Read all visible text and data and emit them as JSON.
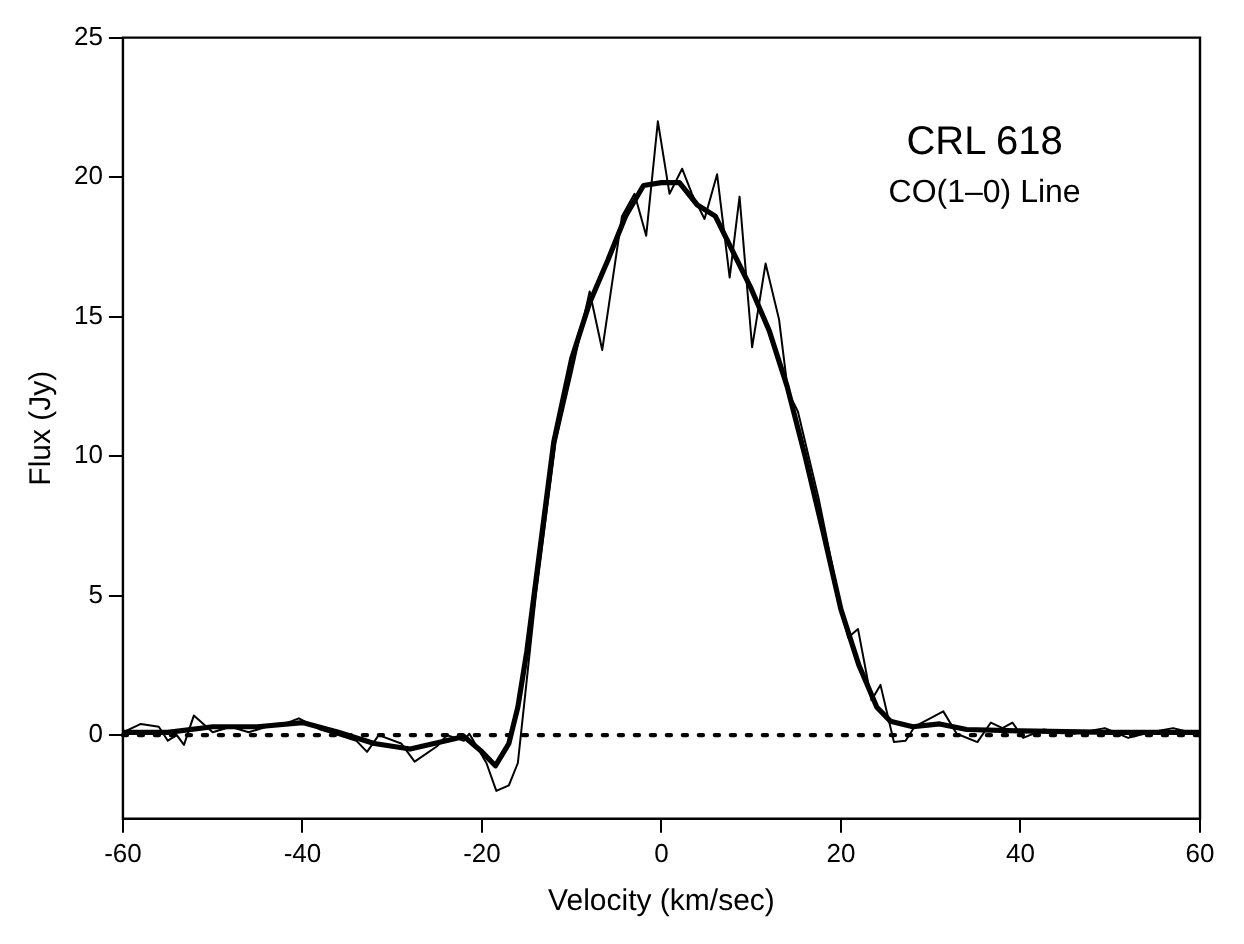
{
  "chart_data": {
    "type": "line",
    "xlabel": "Velocity (km/sec)",
    "ylabel": "Flux (Jy)",
    "annotations": [
      "CRL 618",
      "CO(1–0) Line"
    ],
    "xlim": [
      -60,
      60
    ],
    "xticks": [
      -60,
      -40,
      -20,
      0,
      20,
      40,
      60
    ],
    "ylim": [
      -3,
      25
    ],
    "yticks": [
      0,
      5,
      10,
      15,
      20,
      25
    ],
    "grid": false,
    "legend": false,
    "marker": "none",
    "ref_lines": [
      {
        "axis": "y",
        "value": 0,
        "color": "#000000",
        "line_style": "dotted"
      }
    ],
    "series": [
      {
        "color": "#000000",
        "line_style": "solid",
        "x": [
          -60,
          -58,
          -56,
          -55,
          -54,
          -53.2,
          -52.1,
          -50,
          -48,
          -46,
          -44,
          -42,
          -40.4,
          -38,
          -36,
          -34,
          -32.8,
          -31.5,
          -29,
          -27.5,
          -25,
          -23.9,
          -22,
          -21.4,
          -19.5,
          -18.4,
          -17,
          -16,
          -15.2,
          -14,
          -13,
          -11.8,
          -10,
          -8,
          -6.6,
          -4.4,
          -3,
          -1.7,
          -0.4,
          0.9,
          2.3,
          3.4,
          4.8,
          6.2,
          7.6,
          8.7,
          10.1,
          11.6,
          13.1,
          14.1,
          15.2,
          17.5,
          19.7,
          20.8,
          21.9,
          23.4,
          24.4,
          25.9,
          27.2,
          28.2,
          31.4,
          32.9,
          35.2,
          36.7,
          38,
          39.1,
          40.3,
          42.6,
          46,
          49.4,
          52,
          54.5,
          57,
          59.6
        ],
        "values": [
          0.1,
          0.4,
          0.3,
          -0.2,
          0,
          -0.35,
          0.7,
          0.1,
          0.3,
          0.1,
          0.3,
          0.4,
          0.6,
          0.2,
          0,
          -0.2,
          -0.6,
          0,
          -0.3,
          -0.95,
          -0.4,
          0,
          -0.2,
          0.05,
          -1,
          -2,
          -1.8,
          -1,
          1.4,
          5,
          7.5,
          10.5,
          13,
          15.9,
          13.8,
          18.6,
          19.4,
          17.9,
          22,
          19.4,
          20.3,
          19.4,
          18.5,
          20.1,
          16.4,
          19.3,
          13.9,
          16.9,
          14.9,
          12.3,
          11.6,
          8.5,
          5,
          3.5,
          3.8,
          1.25,
          1.8,
          -0.25,
          -0.2,
          0.3,
          0.85,
          0.05,
          -0.25,
          0.45,
          0.25,
          0.45,
          -0.1,
          0.2,
          0.05,
          0.25,
          -0.1,
          0.1,
          0.25,
          0.05
        ]
      },
      {
        "color": "#000000",
        "line_style": "solid",
        "x": [
          -60,
          -55,
          -50,
          -45,
          -40,
          -36,
          -32,
          -28,
          -24,
          -22,
          -20,
          -18.5,
          -17,
          -16,
          -15,
          -14,
          -13,
          -12,
          -10,
          -8,
          -6,
          -4,
          -2,
          0,
          2,
          4,
          6,
          8,
          10,
          12,
          14,
          16,
          18,
          20,
          22,
          24,
          25.5,
          28,
          31,
          34,
          40,
          50,
          60
        ],
        "values": [
          0.1,
          0.1,
          0.3,
          0.3,
          0.45,
          0.1,
          -0.3,
          -0.5,
          -0.2,
          -0.05,
          -0.6,
          -1.1,
          -0.3,
          1,
          3,
          5.5,
          8,
          10.5,
          13.5,
          15.5,
          17,
          18.6,
          19.7,
          19.8,
          19.8,
          19,
          18.6,
          17.3,
          16,
          14.5,
          12.5,
          10,
          7.3,
          4.5,
          2.5,
          1,
          0.5,
          0.3,
          0.4,
          0.2,
          0.15,
          0.1,
          0.1
        ]
      }
    ]
  }
}
